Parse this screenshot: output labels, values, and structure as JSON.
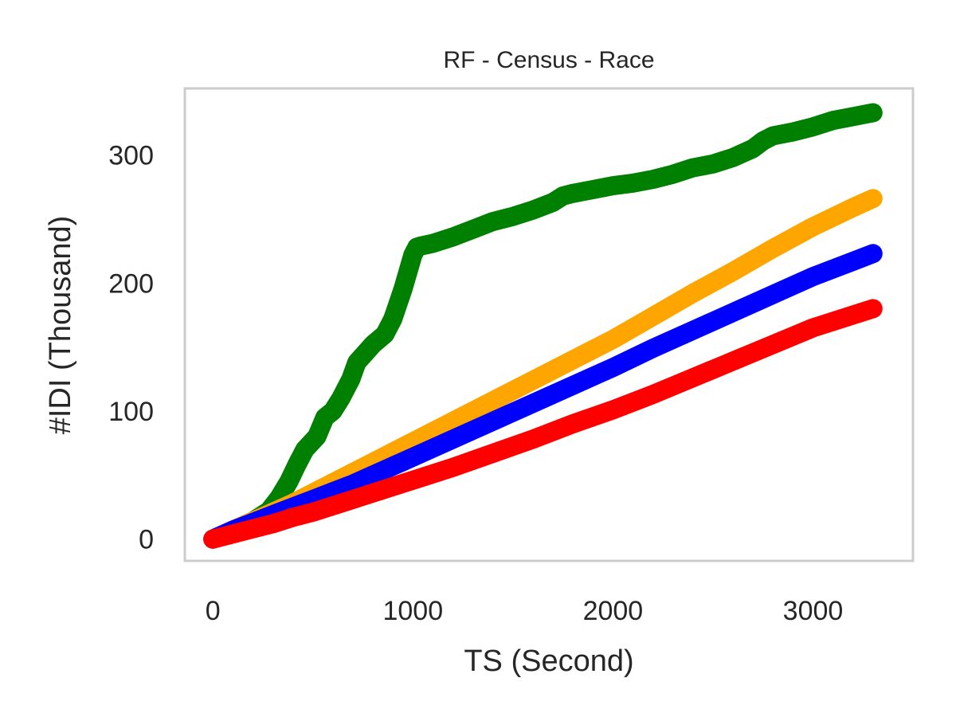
{
  "chart_data": {
    "type": "line",
    "title": "RF - Census - Race",
    "xlabel": "TS (Second)",
    "ylabel": "#IDI (Thousand)",
    "xlim": [
      -140,
      3500
    ],
    "ylim": [
      -17,
      352
    ],
    "xticks": [
      0,
      1000,
      2000,
      3000
    ],
    "xtick_labels": [
      "0",
      "1000",
      "2000",
      "3000"
    ],
    "yticks": [
      0,
      100,
      200,
      300
    ],
    "ytick_labels": [
      "0",
      "100",
      "200",
      "300"
    ],
    "grid": false,
    "legend": "none",
    "series": [
      {
        "color": "#008000",
        "x": [
          0,
          100,
          200,
          280,
          330,
          380,
          420,
          460,
          520,
          560,
          600,
          640,
          690,
          720,
          760,
          800,
          860,
          900,
          950,
          1000,
          1020,
          1040,
          1100,
          1200,
          1300,
          1400,
          1500,
          1600,
          1700,
          1750,
          1800,
          1900,
          2000,
          2100,
          2200,
          2300,
          2400,
          2500,
          2600,
          2700,
          2750,
          2800,
          2900,
          3000,
          3100,
          3200,
          3300
        ],
        "y": [
          0,
          7,
          14,
          22,
          32,
          45,
          58,
          70,
          80,
          95,
          100,
          110,
          125,
          138,
          145,
          152,
          160,
          172,
          195,
          222,
          228,
          229,
          231,
          236,
          242,
          248,
          252,
          257,
          263,
          268,
          270,
          273,
          276,
          278,
          281,
          285,
          290,
          293,
          298,
          305,
          311,
          315,
          318,
          322,
          327,
          330,
          333
        ]
      },
      {
        "color": "#FFA500",
        "x": [
          0,
          100,
          200,
          300,
          400,
          500,
          600,
          700,
          800,
          900,
          1000,
          1200,
          1400,
          1600,
          1800,
          2000,
          2200,
          2400,
          2600,
          2800,
          3000,
          3200,
          3300
        ],
        "y": [
          0,
          7,
          14,
          21,
          28,
          36,
          44,
          52,
          60,
          68,
          76,
          92,
          108,
          124,
          140,
          156,
          174,
          192,
          209,
          227,
          244,
          259,
          266
        ]
      },
      {
        "color": "#0000FF",
        "x": [
          0,
          100,
          200,
          300,
          400,
          500,
          600,
          700,
          800,
          900,
          1000,
          1200,
          1400,
          1600,
          1800,
          2000,
          2200,
          2400,
          2600,
          2800,
          3000,
          3200,
          3300
        ],
        "y": [
          0,
          7,
          13,
          19,
          25,
          31,
          37,
          43,
          50,
          57,
          64,
          78,
          92,
          106,
          120,
          134,
          149,
          163,
          177,
          191,
          205,
          217,
          223
        ]
      },
      {
        "color": "#FF0000",
        "x": [
          0,
          100,
          200,
          300,
          400,
          500,
          600,
          700,
          800,
          900,
          1000,
          1200,
          1400,
          1600,
          1800,
          2000,
          2200,
          2400,
          2600,
          2800,
          3000,
          3200,
          3300
        ],
        "y": [
          0,
          4,
          8,
          12,
          17,
          21,
          26,
          31,
          36,
          41,
          46,
          56,
          67,
          78,
          90,
          101,
          113,
          126,
          139,
          152,
          165,
          175,
          180
        ]
      }
    ]
  }
}
